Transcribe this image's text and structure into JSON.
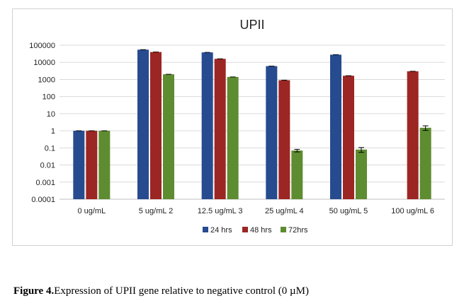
{
  "chart_data": {
    "type": "bar",
    "title": "UPII",
    "xlabel": "",
    "ylabel": "",
    "yscale": "log",
    "ylim": [
      0.0001,
      100000
    ],
    "y_ticks": [
      "100000",
      "10000",
      "1000",
      "100",
      "10",
      "1",
      "0.1",
      "0.01",
      "0.001",
      "0.0001"
    ],
    "categories": [
      "0 ug/mL",
      "5 ug/mL 2",
      "12.5 ug/mL 3",
      "25 ug/mL 4",
      "50 ug/mL 5",
      "100 ug/mL 6"
    ],
    "series": [
      {
        "name": "24 hrs",
        "color": "#264b8f",
        "values": [
          1,
          55000,
          38000,
          6000,
          28000,
          null
        ],
        "errors": [
          0,
          0,
          0,
          0,
          0,
          0
        ]
      },
      {
        "name": "48 hrs",
        "color": "#9b2623",
        "values": [
          1,
          40000,
          16000,
          900,
          1650,
          3000
        ],
        "errors": [
          0,
          0,
          0,
          0,
          0,
          0
        ]
      },
      {
        "name": "72hrs",
        "color": "#5e8c31",
        "values": [
          1,
          2000,
          1400,
          0.07,
          0.08,
          1.5
        ],
        "errors": [
          0,
          0,
          0,
          0.012,
          0.025,
          0.45
        ]
      }
    ],
    "grid": true,
    "legend": "bottom"
  },
  "caption": {
    "bold": "Figure 4.",
    "text": "Expression of UPII gene relative to negative control (0 µM)"
  }
}
